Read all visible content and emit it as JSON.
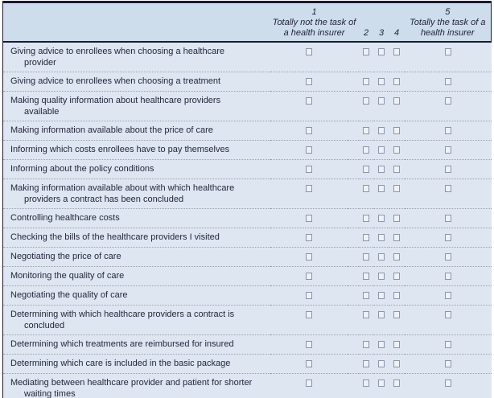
{
  "table": {
    "header": {
      "col1_number": "1",
      "col1_line1": "Totally not the task of",
      "col1_line2": "a health insurer",
      "col2": "2",
      "col3": "3",
      "col4": "4",
      "col5_number": "5",
      "col5_line1": "Totally the task of a",
      "col5_line2": "health insurer"
    },
    "scale_values": [
      "1",
      "2",
      "3",
      "4",
      "5"
    ],
    "checkboxes": {
      "per_row": 5,
      "state": "unchecked"
    },
    "rows": [
      {
        "label": "Giving advice to enrollees when choosing a healthcare provider"
      },
      {
        "label": "Giving advice to enrollees when choosing a treatment"
      },
      {
        "label": "Making quality information about healthcare providers available"
      },
      {
        "label": "Making information available about the price of care"
      },
      {
        "label": "Informing which costs enrollees have to pay themselves"
      },
      {
        "label": "Informing about the policy conditions"
      },
      {
        "label": "Making information available about with which healthcare providers a contract has been concluded"
      },
      {
        "label": "Controlling healthcare costs"
      },
      {
        "label": "Checking the bills of the healthcare providers I visited"
      },
      {
        "label": "Negotiating the price of care"
      },
      {
        "label": "Monitoring the quality of care"
      },
      {
        "label": "Negotiating the quality of care"
      },
      {
        "label": "Determining with which healthcare providers a contract is concluded"
      },
      {
        "label": "Determining which treatments are reimbursed for insured"
      },
      {
        "label": "Determining which care is included in the basic package"
      },
      {
        "label": "Mediating between healthcare provider and patient for shorter waiting times"
      }
    ]
  },
  "colors": {
    "header_bg": "#cdddeb",
    "body_bg": "#dde6f1",
    "rule_dark": "#1b1b33",
    "dotted_separator": "#9aa2ae",
    "checkbox_border": "#8d95a8",
    "text": "#26263e"
  }
}
